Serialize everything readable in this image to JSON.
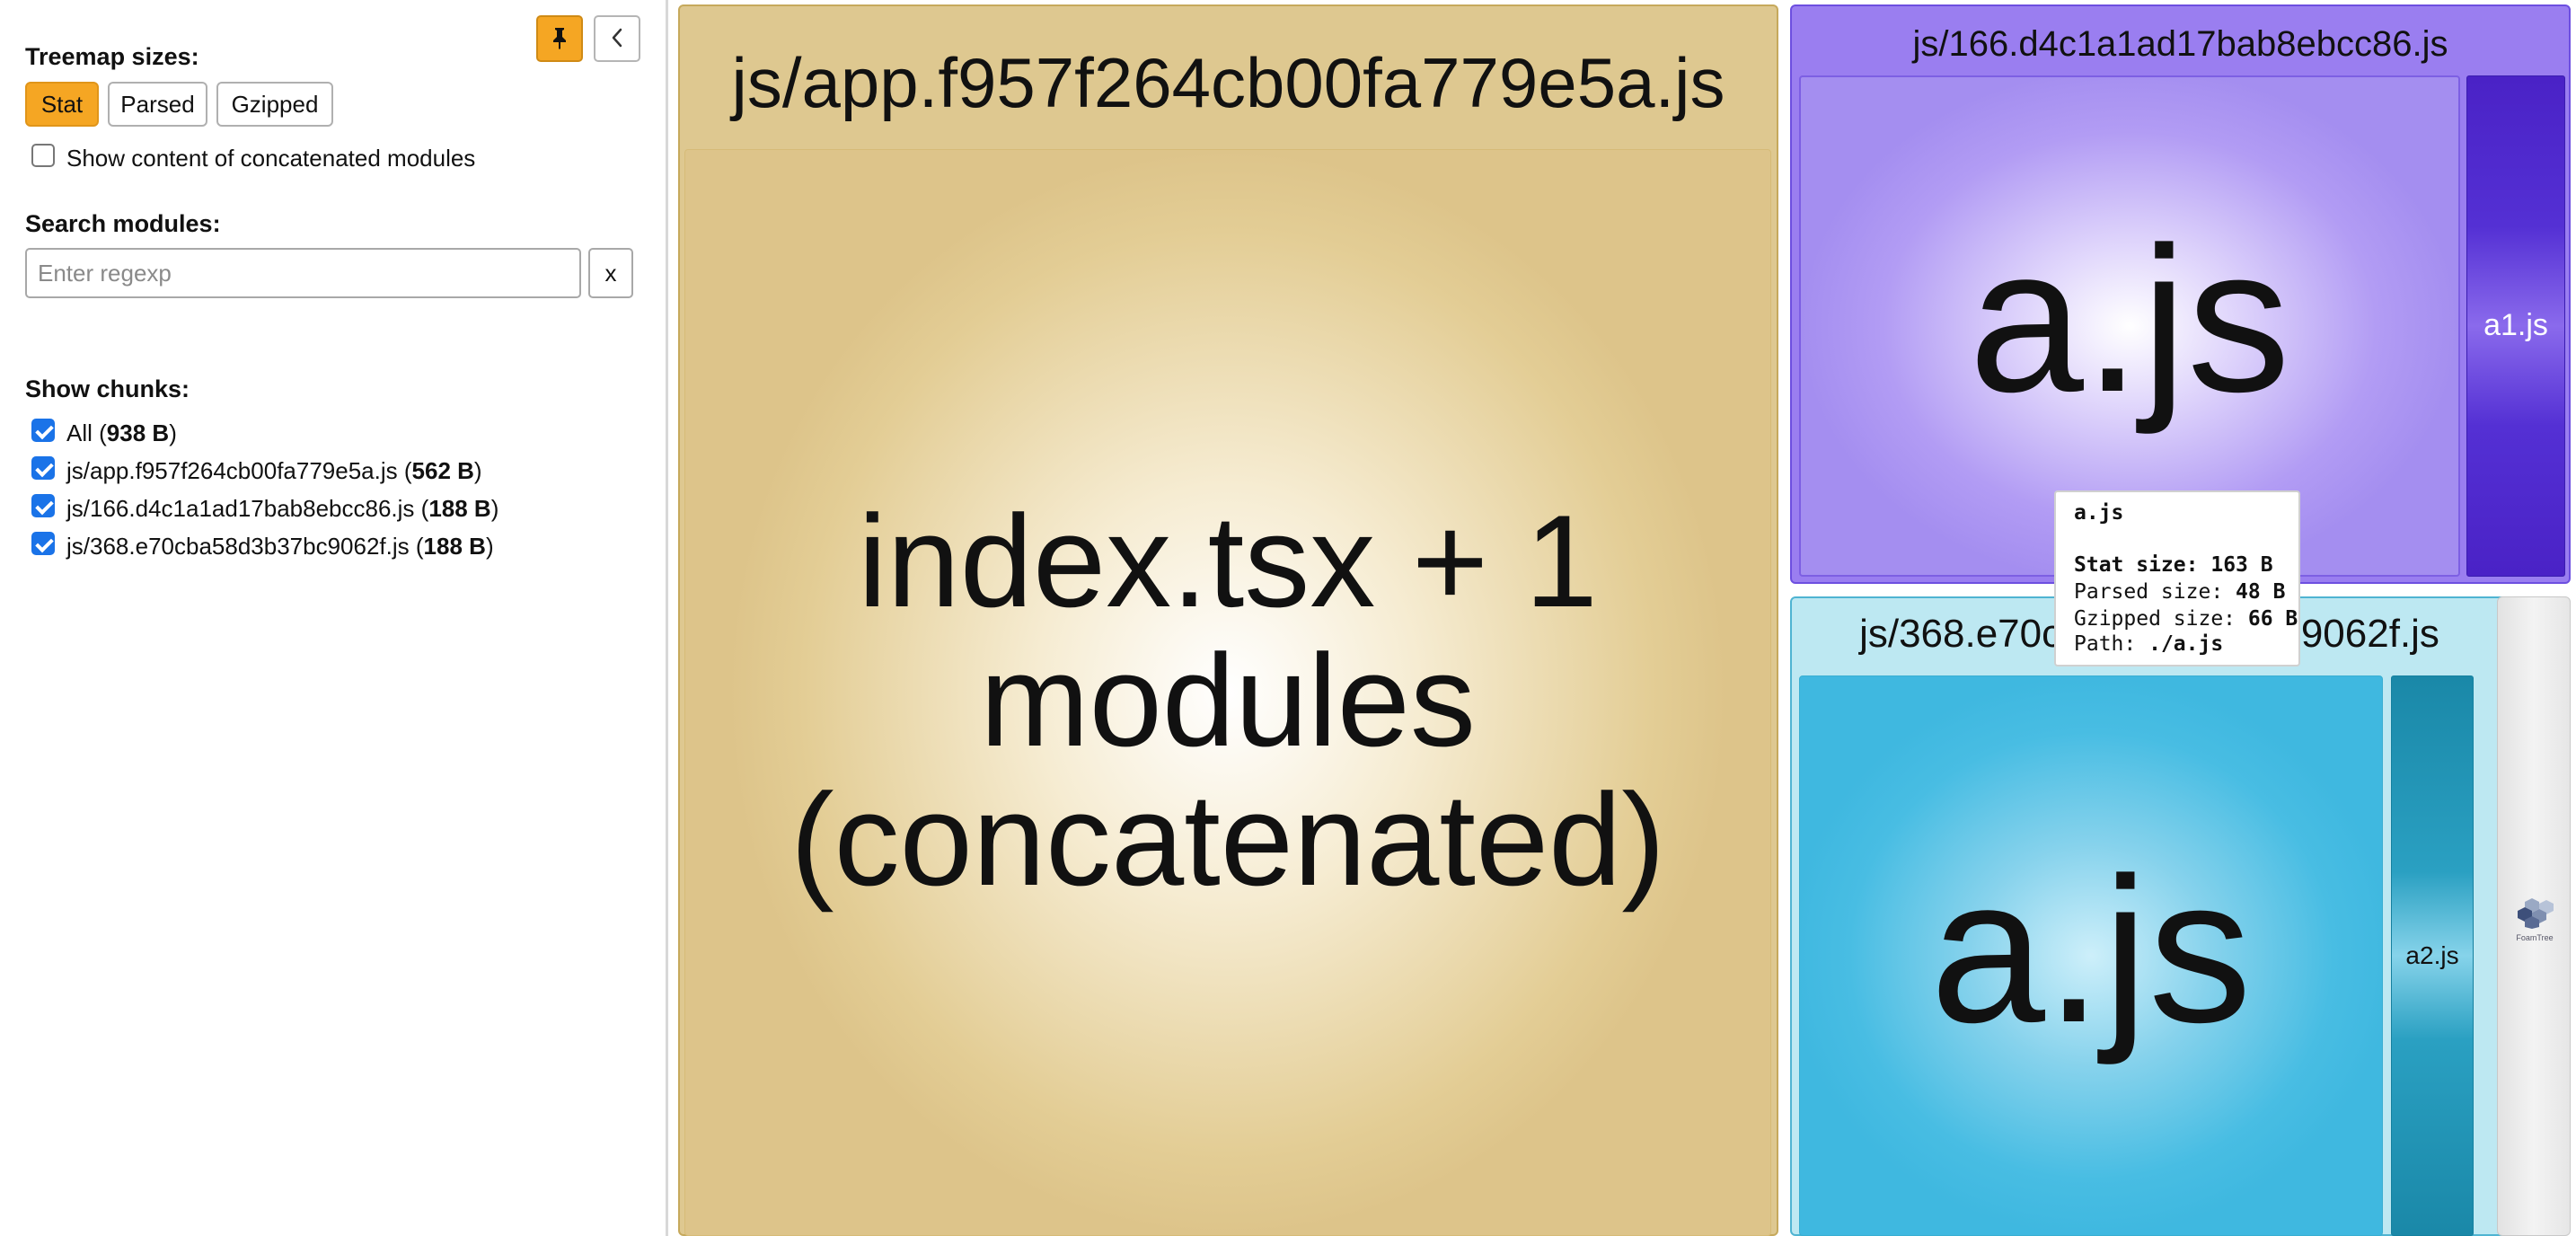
{
  "sidebar": {
    "treemap_sizes_label": "Treemap sizes:",
    "size_buttons": [
      {
        "label": "Stat",
        "active": true
      },
      {
        "label": "Parsed",
        "active": false
      },
      {
        "label": "Gzipped",
        "active": false
      }
    ],
    "show_concatenated_label": "Show content of concatenated modules",
    "show_concatenated_checked": false,
    "search_label": "Search modules:",
    "search_placeholder": "Enter regexp",
    "search_value": "",
    "clear_button_label": "x",
    "show_chunks_label": "Show chunks:",
    "chunks": [
      {
        "name": "All",
        "size": "938 B",
        "checked": true
      },
      {
        "name": "js/app.f957f264cb00fa779e5a.js",
        "size": "562 B",
        "checked": true
      },
      {
        "name": "js/166.d4c1a1ad17bab8ebcc86.js",
        "size": "188 B",
        "checked": true
      },
      {
        "name": "js/368.e70cba58d3b37bc9062f.js",
        "size": "188 B",
        "checked": true
      }
    ]
  },
  "treemap": {
    "app_chunk_title": "js/app.f957f264cb00fa779e5a.js",
    "app_module_label_lines": [
      "index.tsx + 1",
      "modules",
      "(concatenated)"
    ],
    "chunk166_title": "js/166.d4c1a1ad17bab8ebcc86.js",
    "chunk166_module_a": "a.js",
    "chunk166_module_a1": "a1.js",
    "chunk368_title": "js/368.e70cba58d3b37bc9062f.js",
    "chunk368_module_a": "a.js",
    "chunk368_module_a2": "a2.js",
    "foamtree_logo_text": "FoamTree"
  },
  "tooltip": {
    "title": "a.js",
    "stat_label": "Stat size:",
    "stat_value": "163 B",
    "parsed_label": "Parsed size:",
    "parsed_value": "48 B",
    "gzipped_label": "Gzipped size:",
    "gzipped_value": "66 B",
    "path_label": "Path:",
    "path_value": "./a.js"
  },
  "colors": {
    "accent": "#f5a623",
    "checkbox": "#1a73e8",
    "app_chunk": "#dec890",
    "chunk166": "#9a7ef0",
    "chunk368": "#bde8f2"
  },
  "icons": {
    "pin": "pin-icon",
    "collapse": "chevron-left-icon"
  }
}
